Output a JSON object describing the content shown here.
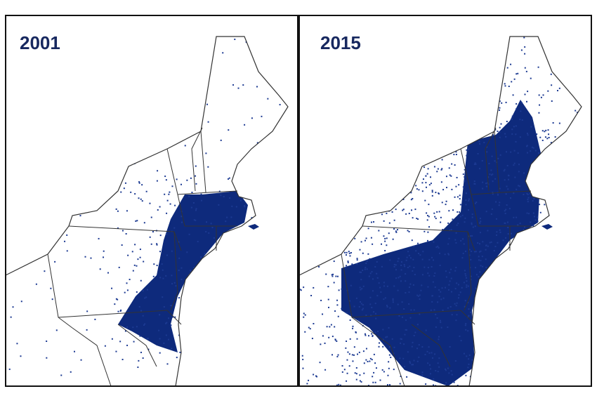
{
  "panels": [
    {
      "label": "2001"
    },
    {
      "label": "2015"
    }
  ]
}
